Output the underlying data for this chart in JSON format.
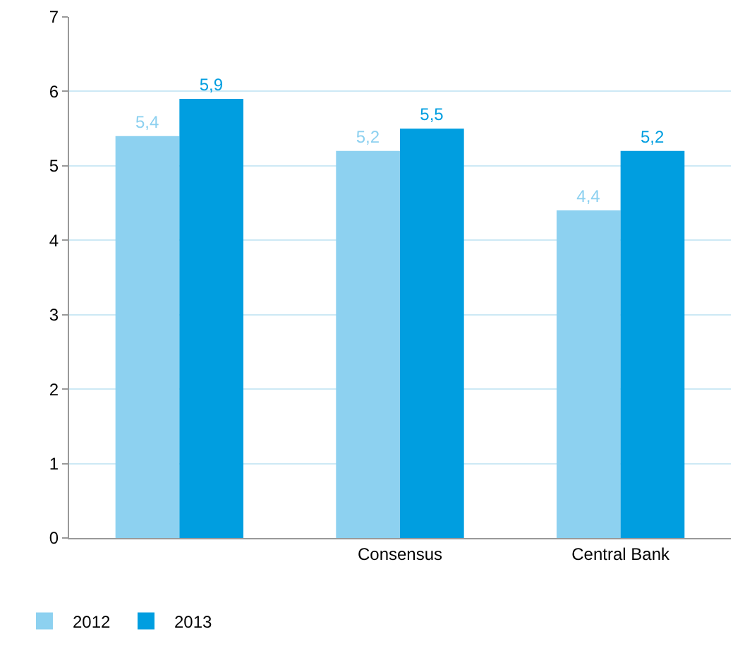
{
  "chart_data": {
    "type": "bar",
    "categories": [
      null,
      "Consensus",
      "Central Bank"
    ],
    "series": [
      {
        "name": "2012",
        "color": "#8dd1f0",
        "values": [
          5.4,
          5.2,
          4.4
        ],
        "value_labels": [
          "5,4",
          "5,2",
          "4,4"
        ]
      },
      {
        "name": "2013",
        "color": "#009ee0",
        "values": [
          5.9,
          5.5,
          5.2
        ],
        "value_labels": [
          "5,9",
          "5,5",
          "5,2"
        ]
      }
    ],
    "ylim": [
      0,
      7
    ],
    "yticks": [
      0,
      1,
      2,
      3,
      4,
      5,
      6,
      7
    ],
    "grid": "y",
    "legend": "bottom left"
  }
}
